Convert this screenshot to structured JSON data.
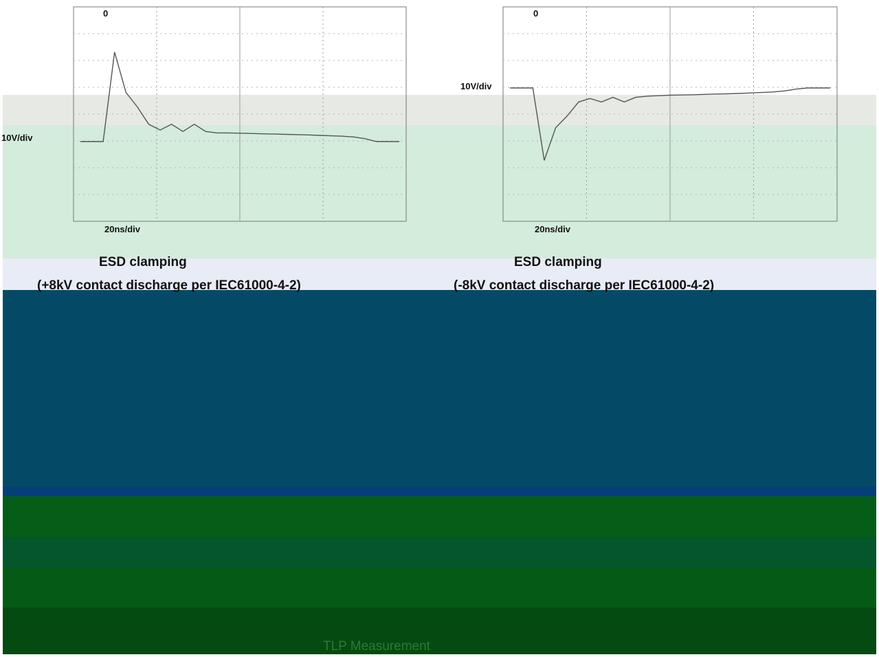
{
  "chart_data": [
    {
      "type": "line",
      "title": "ESD clamping",
      "subtitle": "(+8kV contact discharge per IEC61000-4-2)",
      "ylabel": "10V/div",
      "xlabel": "20ns/div",
      "marker_label": "0",
      "series": [
        {
          "values": [
            0,
            0,
            0,
            62,
            34,
            24,
            12,
            8,
            12,
            7,
            12,
            7,
            6,
            6,
            5.8,
            5.6,
            5.4,
            5.2,
            5,
            4.8,
            4.6,
            4.3,
            4,
            3.7,
            3.2,
            2,
            0,
            0,
            0
          ]
        }
      ]
    },
    {
      "type": "line",
      "title": "ESD clamping",
      "subtitle": "(-8kV contact discharge per IEC61000-4-2)",
      "ylabel": "10V/div",
      "xlabel": "20ns/div",
      "marker_label": "0",
      "series": [
        {
          "values": [
            0,
            0,
            0,
            -62,
            -34,
            -24,
            -12,
            -9,
            -12,
            -8,
            -12,
            -8,
            -7,
            -6.6,
            -6.2,
            -6,
            -5.8,
            -5.5,
            -5.2,
            -5,
            -4.7,
            -4.3,
            -3.9,
            -3.4,
            -2.5,
            -1,
            0,
            0,
            0
          ]
        }
      ]
    }
  ],
  "footer": {
    "text": "TLP Measurement"
  }
}
